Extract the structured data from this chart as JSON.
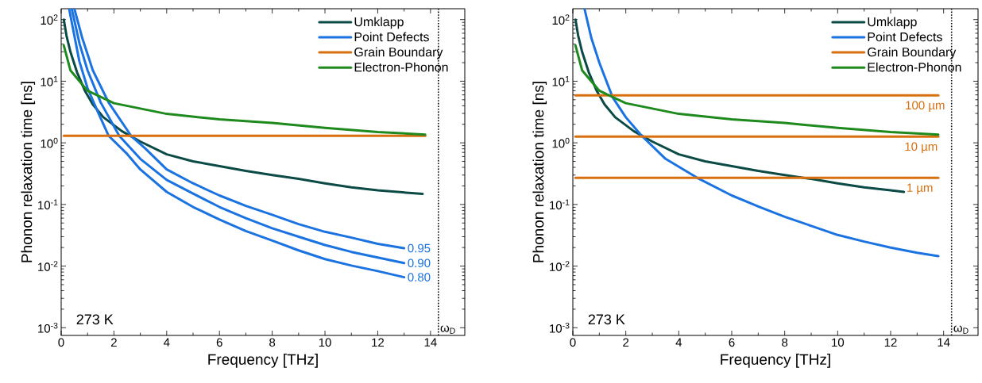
{
  "chart_data": [
    {
      "type": "line",
      "xlabel": "Frequency [THz]",
      "ylabel": "Phonon relaxation time [ns]",
      "log": "y",
      "legend": "top right",
      "xlim": [
        0,
        15.3
      ],
      "ylim": [
        0.00075,
        150
      ],
      "xticks": [
        0,
        2,
        4,
        6,
        8,
        10,
        12,
        14
      ],
      "yticks": [
        {
          "value": 0.001,
          "label": "10$^{-3}$"
        },
        {
          "value": 0.01,
          "label": "10$^{-2}$"
        },
        {
          "value": 0.1,
          "label": "10$^{-1}$"
        },
        {
          "value": 1,
          "label": "10$^{0}$"
        },
        {
          "value": 10,
          "label": "10$^{1}$"
        },
        {
          "value": 100,
          "label": "10$^{2}$"
        }
      ],
      "series": [
        {
          "name": "Umklapp",
          "color": "#0b4a45",
          "x": [
            0.1,
            0.2,
            0.35,
            0.6,
            0.9,
            1.2,
            1.6,
            2.3,
            3,
            4,
            5,
            6,
            7,
            8,
            9,
            10,
            11,
            12,
            13.7
          ],
          "values": [
            100,
            55,
            30,
            14,
            7,
            4.2,
            2.6,
            1.55,
            1.05,
            0.65,
            0.5,
            0.42,
            0.35,
            0.3,
            0.26,
            0.22,
            0.19,
            0.17,
            0.148
          ]
        },
        {
          "name": "Point Defects",
          "color": "#1a73e0",
          "x": [
            0.5,
            0.8,
            1.2,
            1.8,
            2.65,
            3.2,
            4,
            5,
            6,
            7,
            8,
            9,
            10,
            11,
            12,
            13
          ],
          "values": [
            150,
            50,
            15,
            4.5,
            1.3,
            0.8,
            0.37,
            0.22,
            0.14,
            0.095,
            0.068,
            0.048,
            0.036,
            0.029,
            0.023,
            0.0195
          ]
        },
        {
          "color": "#1a73e0",
          "x": [
            0.4,
            0.7,
            1.0,
            1.5,
            2.2,
            3,
            4,
            5,
            6,
            7,
            8,
            9,
            10,
            11,
            12,
            13
          ],
          "values": [
            150,
            40,
            15,
            4.5,
            1.3,
            0.55,
            0.25,
            0.15,
            0.091,
            0.06,
            0.041,
            0.03,
            0.022,
            0.017,
            0.0138,
            0.0112
          ]
        },
        {
          "color": "#1a73e0",
          "x": [
            0.3,
            0.69,
            1.0,
            1.4,
            1.8,
            2.5,
            3,
            4,
            5,
            6,
            7,
            8,
            9,
            10,
            11,
            12,
            13
          ],
          "values": [
            150,
            21,
            7.7,
            3.1,
            1.3,
            0.66,
            0.37,
            0.16,
            0.091,
            0.057,
            0.037,
            0.026,
            0.018,
            0.013,
            0.0102,
            0.0083,
            0.0066
          ]
        },
        {
          "name": "Grain Boundary",
          "color": "#d9700f",
          "x": [
            0.1,
            13.8
          ],
          "values": [
            1.3,
            1.3
          ]
        },
        {
          "name": "Electron-Phonon",
          "color": "#1e8a1e",
          "x": [
            0.1,
            0.35,
            1,
            2,
            4,
            6,
            8,
            10,
            12,
            13.8
          ],
          "values": [
            38,
            15,
            7,
            4.4,
            2.95,
            2.4,
            2.1,
            1.75,
            1.5,
            1.36
          ]
        }
      ],
      "ref_lines": [
        {
          "axis": "x",
          "value": 14.3,
          "label": "ω$_{D}$",
          "line_style": "dotted",
          "color": "#000000"
        }
      ],
      "annotations": [
        "273 K",
        {
          "text": "0.95",
          "x": 13,
          "y": 0.0195
        },
        {
          "text": "0.90",
          "x": 13,
          "y": 0.0112
        },
        {
          "text": "0.80",
          "x": 13,
          "y": 0.0066
        }
      ]
    },
    {
      "type": "line",
      "xlabel": "Frequency [THz]",
      "ylabel": "Phonon relaxation time [ns]",
      "log": "y",
      "legend": "top right",
      "xlim": [
        0,
        15.3
      ],
      "ylim": [
        0.00075,
        150
      ],
      "xticks": [
        0,
        2,
        4,
        6,
        8,
        10,
        12,
        14
      ],
      "yticks": [
        {
          "value": 0.001,
          "label": "10$^{-3}$"
        },
        {
          "value": 0.01,
          "label": "10$^{-2}$"
        },
        {
          "value": 0.1,
          "label": "10$^{-1}$"
        },
        {
          "value": 1,
          "label": "10$^{0}$"
        },
        {
          "value": 10,
          "label": "10$^{1}$"
        },
        {
          "value": 100,
          "label": "10$^{2}$"
        }
      ],
      "series": [
        {
          "name": "Umklapp",
          "color": "#0b4a45",
          "x": [
            0.1,
            0.2,
            0.35,
            0.6,
            0.9,
            1.2,
            1.6,
            2.3,
            3,
            4,
            5,
            6,
            7,
            8,
            9,
            10,
            11,
            12,
            12.5
          ],
          "values": [
            100,
            55,
            30,
            14,
            7,
            4.2,
            2.6,
            1.55,
            1.05,
            0.65,
            0.5,
            0.42,
            0.35,
            0.3,
            0.26,
            0.22,
            0.19,
            0.17,
            0.16
          ]
        },
        {
          "name": "Point Defects",
          "color": "#1a73e0",
          "x": [
            0.44,
            0.7,
            1.0,
            1.5,
            2.0,
            2.6,
            3.5,
            4.7,
            6,
            7,
            8,
            9,
            10,
            11,
            12,
            13,
            13.8
          ],
          "values": [
            150,
            50,
            20,
            5.5,
            2.6,
            1.3,
            0.55,
            0.27,
            0.14,
            0.093,
            0.063,
            0.045,
            0.032,
            0.025,
            0.02,
            0.0165,
            0.0145
          ]
        },
        {
          "name": "Grain Boundary",
          "color": "#d9700f",
          "x": [
            0.1,
            13.8
          ],
          "values": [
            5.9,
            5.9
          ]
        },
        {
          "color": "#d9700f",
          "x": [
            0.1,
            13.8
          ],
          "values": [
            1.26,
            1.26
          ]
        },
        {
          "color": "#d9700f",
          "x": [
            0.1,
            13.8
          ],
          "values": [
            0.27,
            0.27
          ]
        },
        {
          "name": "Electron-Phonon",
          "color": "#1e8a1e",
          "x": [
            0.1,
            0.35,
            1,
            2,
            4,
            6,
            8,
            10,
            12,
            13.8
          ],
          "values": [
            38,
            15,
            7,
            4.4,
            2.95,
            2.4,
            2.1,
            1.75,
            1.5,
            1.36
          ]
        }
      ],
      "ref_lines": [
        {
          "axis": "x",
          "value": 14.3,
          "label": "ω$_{D}$",
          "line_style": "dotted",
          "color": "#000000"
        }
      ],
      "annotations": [
        "273 K",
        {
          "text": "100 µm",
          "x": 13.3,
          "y": 5.9
        },
        {
          "text": "10 µm",
          "x": 13.15,
          "y": 1.26
        },
        {
          "text": "1 µm",
          "x": 13.1,
          "y": 0.27
        }
      ]
    }
  ]
}
